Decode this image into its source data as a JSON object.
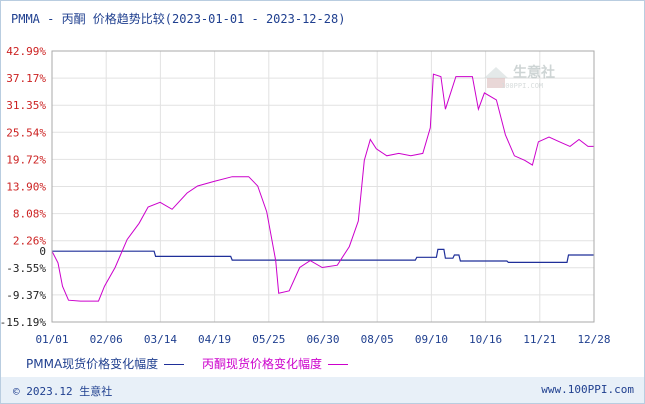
{
  "chart_data": {
    "type": "line",
    "title": "PMMA - 丙酮 价格趋势比较(2023-01-01 - 2023-12-28)",
    "y_ticks": [
      "42.99%",
      "37.17%",
      "31.35%",
      "25.54%",
      "19.72%",
      "13.90%",
      "8.08%",
      "2.26%",
      "0",
      "-3.55%",
      "-9.37%",
      "-15.19%"
    ],
    "ylim": [
      -15.19,
      42.99
    ],
    "grid": true,
    "x_ticks": [
      "01/01",
      "02/06",
      "03/14",
      "04/19",
      "05/25",
      "06/30",
      "08/05",
      "09/10",
      "10/16",
      "11/21",
      "12/28"
    ],
    "legend_position": "bottom-left",
    "series": [
      {
        "name": "PMMA现货价格变化幅度",
        "color": "#1f2f99",
        "points": [
          [
            "2023-01-01",
            0
          ],
          [
            "2023-03-10",
            0
          ],
          [
            "2023-03-11",
            -1.1
          ],
          [
            "2023-04-30",
            -1.1
          ],
          [
            "2023-05-01",
            -1.9
          ],
          [
            "2023-08-31",
            -1.9
          ],
          [
            "2023-09-01",
            -1.3
          ],
          [
            "2023-09-14",
            -1.3
          ],
          [
            "2023-09-15",
            0.4
          ],
          [
            "2023-09-19",
            0.4
          ],
          [
            "2023-09-20",
            -1.5
          ],
          [
            "2023-09-25",
            -1.5
          ],
          [
            "2023-09-26",
            -0.8
          ],
          [
            "2023-09-29",
            -0.8
          ],
          [
            "2023-09-30",
            -2.1
          ],
          [
            "2023-10-31",
            -2.1
          ],
          [
            "2023-11-01",
            -2.4
          ],
          [
            "2023-12-10",
            -2.4
          ],
          [
            "2023-12-11",
            -0.8
          ],
          [
            "2023-12-28",
            -0.8
          ]
        ]
      },
      {
        "name": "丙酮现货价格变化幅度",
        "color": "#cc00cc",
        "points": [
          [
            "2023-01-01",
            0
          ],
          [
            "2023-01-05",
            -2.5
          ],
          [
            "2023-01-08",
            -7.5
          ],
          [
            "2023-01-12",
            -10.5
          ],
          [
            "2023-01-20",
            -10.7
          ],
          [
            "2023-02-01",
            -10.7
          ],
          [
            "2023-02-05",
            -7.5
          ],
          [
            "2023-02-12",
            -3.5
          ],
          [
            "2023-02-20",
            2.5
          ],
          [
            "2023-02-28",
            6.0
          ],
          [
            "2023-03-06",
            9.5
          ],
          [
            "2023-03-14",
            10.5
          ],
          [
            "2023-03-22",
            9.0
          ],
          [
            "2023-04-01",
            12.5
          ],
          [
            "2023-04-08",
            14.0
          ],
          [
            "2023-04-19",
            15.0
          ],
          [
            "2023-05-01",
            16.0
          ],
          [
            "2023-05-12",
            16.0
          ],
          [
            "2023-05-18",
            14.0
          ],
          [
            "2023-05-24",
            8.5
          ],
          [
            "2023-05-30",
            -2.0
          ],
          [
            "2023-06-01",
            -9.0
          ],
          [
            "2023-06-08",
            -8.5
          ],
          [
            "2023-06-15",
            -3.5
          ],
          [
            "2023-06-22",
            -2.0
          ],
          [
            "2023-06-30",
            -3.5
          ],
          [
            "2023-07-10",
            -3.0
          ],
          [
            "2023-07-18",
            1.0
          ],
          [
            "2023-07-24",
            6.5
          ],
          [
            "2023-07-28",
            19.5
          ],
          [
            "2023-08-01",
            24.0
          ],
          [
            "2023-08-05",
            22.0
          ],
          [
            "2023-08-12",
            20.5
          ],
          [
            "2023-08-20",
            21.0
          ],
          [
            "2023-08-28",
            20.5
          ],
          [
            "2023-09-05",
            21.0
          ],
          [
            "2023-09-10",
            26.5
          ],
          [
            "2023-09-12",
            38.0
          ],
          [
            "2023-09-17",
            37.5
          ],
          [
            "2023-09-20",
            30.5
          ],
          [
            "2023-09-27",
            37.5
          ],
          [
            "2023-10-08",
            37.5
          ],
          [
            "2023-10-12",
            30.5
          ],
          [
            "2023-10-16",
            34.0
          ],
          [
            "2023-10-24",
            32.5
          ],
          [
            "2023-10-30",
            25.0
          ],
          [
            "2023-11-05",
            20.5
          ],
          [
            "2023-11-12",
            19.5
          ],
          [
            "2023-11-17",
            18.5
          ],
          [
            "2023-11-21",
            23.5
          ],
          [
            "2023-11-28",
            24.5
          ],
          [
            "2023-12-05",
            23.5
          ],
          [
            "2023-12-12",
            22.5
          ],
          [
            "2023-12-18",
            24.0
          ],
          [
            "2023-12-24",
            22.5
          ],
          [
            "2023-12-28",
            22.5
          ]
        ]
      }
    ]
  },
  "watermark": {
    "brand": "生意社",
    "url": "100PPI.COM"
  },
  "footer": {
    "copyright": "© 2023.12 生意社",
    "site": "www.100PPI.com"
  }
}
